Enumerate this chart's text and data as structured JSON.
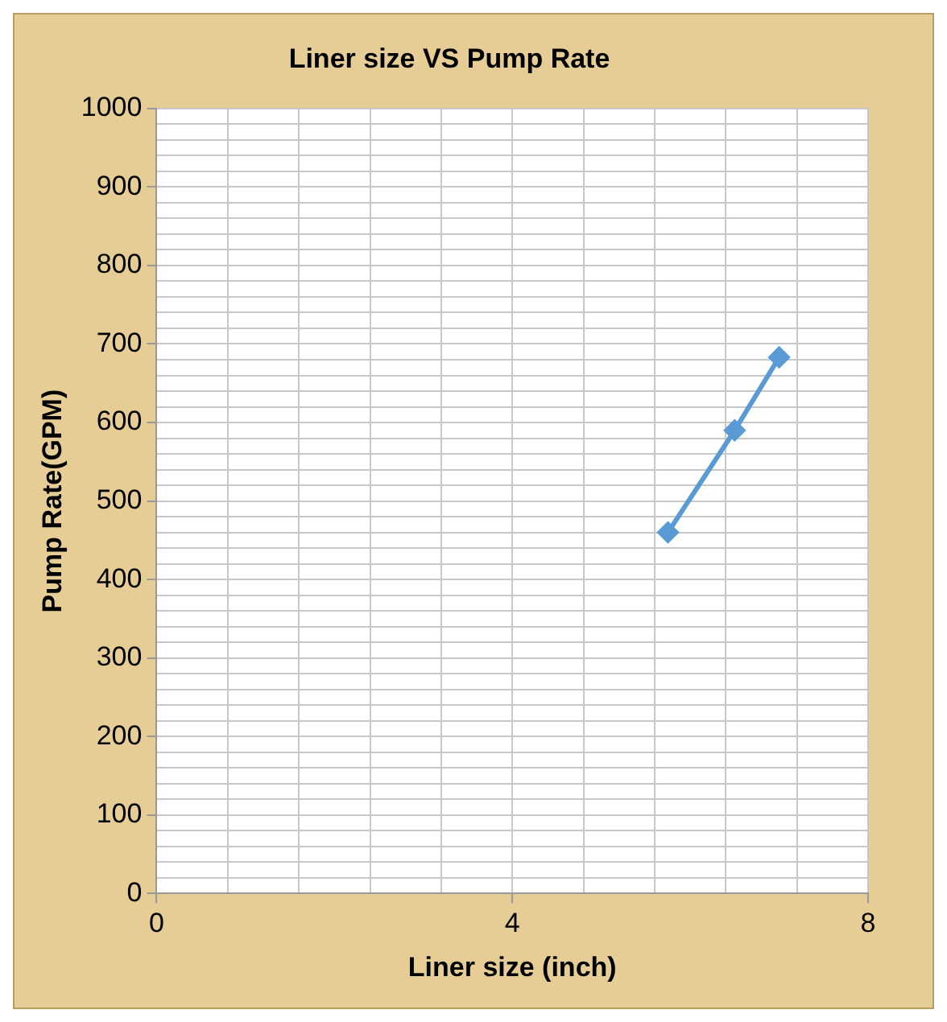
{
  "chart_data": {
    "type": "line",
    "title": "Liner size VS Pump Rate",
    "xlabel": "Liner size (inch)",
    "ylabel": "Pump Rate(GPM)",
    "x": [
      5.75,
      6.5,
      7
    ],
    "series": [
      {
        "color": "#5b9bd5",
        "values": [
          460,
          590,
          683
        ]
      }
    ],
    "xlim": [
      0,
      8
    ],
    "xticks": [
      0,
      {
        "value": 0.8,
        "label": null
      },
      {
        "value": 1.6,
        "label": null
      },
      {
        "value": 2.4,
        "label": null
      },
      {
        "value": 3.2,
        "label": null
      },
      4,
      {
        "value": 4.8,
        "label": null
      },
      {
        "value": 5.6,
        "label": null
      },
      {
        "value": 6.4,
        "label": null
      },
      {
        "value": 7.2,
        "label": null
      },
      8
    ],
    "ylim": [
      0,
      1000
    ],
    "yticks": [
      0,
      {
        "value": 20,
        "label": null
      },
      {
        "value": 40,
        "label": null
      },
      {
        "value": 60,
        "label": null
      },
      {
        "value": 80,
        "label": null
      },
      100,
      {
        "value": 120,
        "label": null
      },
      {
        "value": 140,
        "label": null
      },
      {
        "value": 160,
        "label": null
      },
      {
        "value": 180,
        "label": null
      },
      200,
      {
        "value": 220,
        "label": null
      },
      {
        "value": 240,
        "label": null
      },
      {
        "value": 260,
        "label": null
      },
      {
        "value": 280,
        "label": null
      },
      300,
      {
        "value": 320,
        "label": null
      },
      {
        "value": 340,
        "label": null
      },
      {
        "value": 360,
        "label": null
      },
      {
        "value": 380,
        "label": null
      },
      400,
      {
        "value": 420,
        "label": null
      },
      {
        "value": 440,
        "label": null
      },
      {
        "value": 460,
        "label": null
      },
      {
        "value": 480,
        "label": null
      },
      500,
      {
        "value": 520,
        "label": null
      },
      {
        "value": 540,
        "label": null
      },
      {
        "value": 560,
        "label": null
      },
      {
        "value": 580,
        "label": null
      },
      600,
      {
        "value": 620,
        "label": null
      },
      {
        "value": 640,
        "label": null
      },
      {
        "value": 660,
        "label": null
      },
      {
        "value": 680,
        "label": null
      },
      700,
      {
        "value": 720,
        "label": null
      },
      {
        "value": 740,
        "label": null
      },
      {
        "value": 760,
        "label": null
      },
      {
        "value": 780,
        "label": null
      },
      800,
      {
        "value": 820,
        "label": null
      },
      {
        "value": 840,
        "label": null
      },
      {
        "value": 860,
        "label": null
      },
      {
        "value": 880,
        "label": null
      },
      900,
      {
        "value": 920,
        "label": null
      },
      {
        "value": 940,
        "label": null
      },
      {
        "value": 960,
        "label": null
      },
      {
        "value": 980,
        "label": null
      },
      1000
    ],
    "grid": true,
    "marker": "diamond",
    "line_style": "solid",
    "legend": false
  }
}
